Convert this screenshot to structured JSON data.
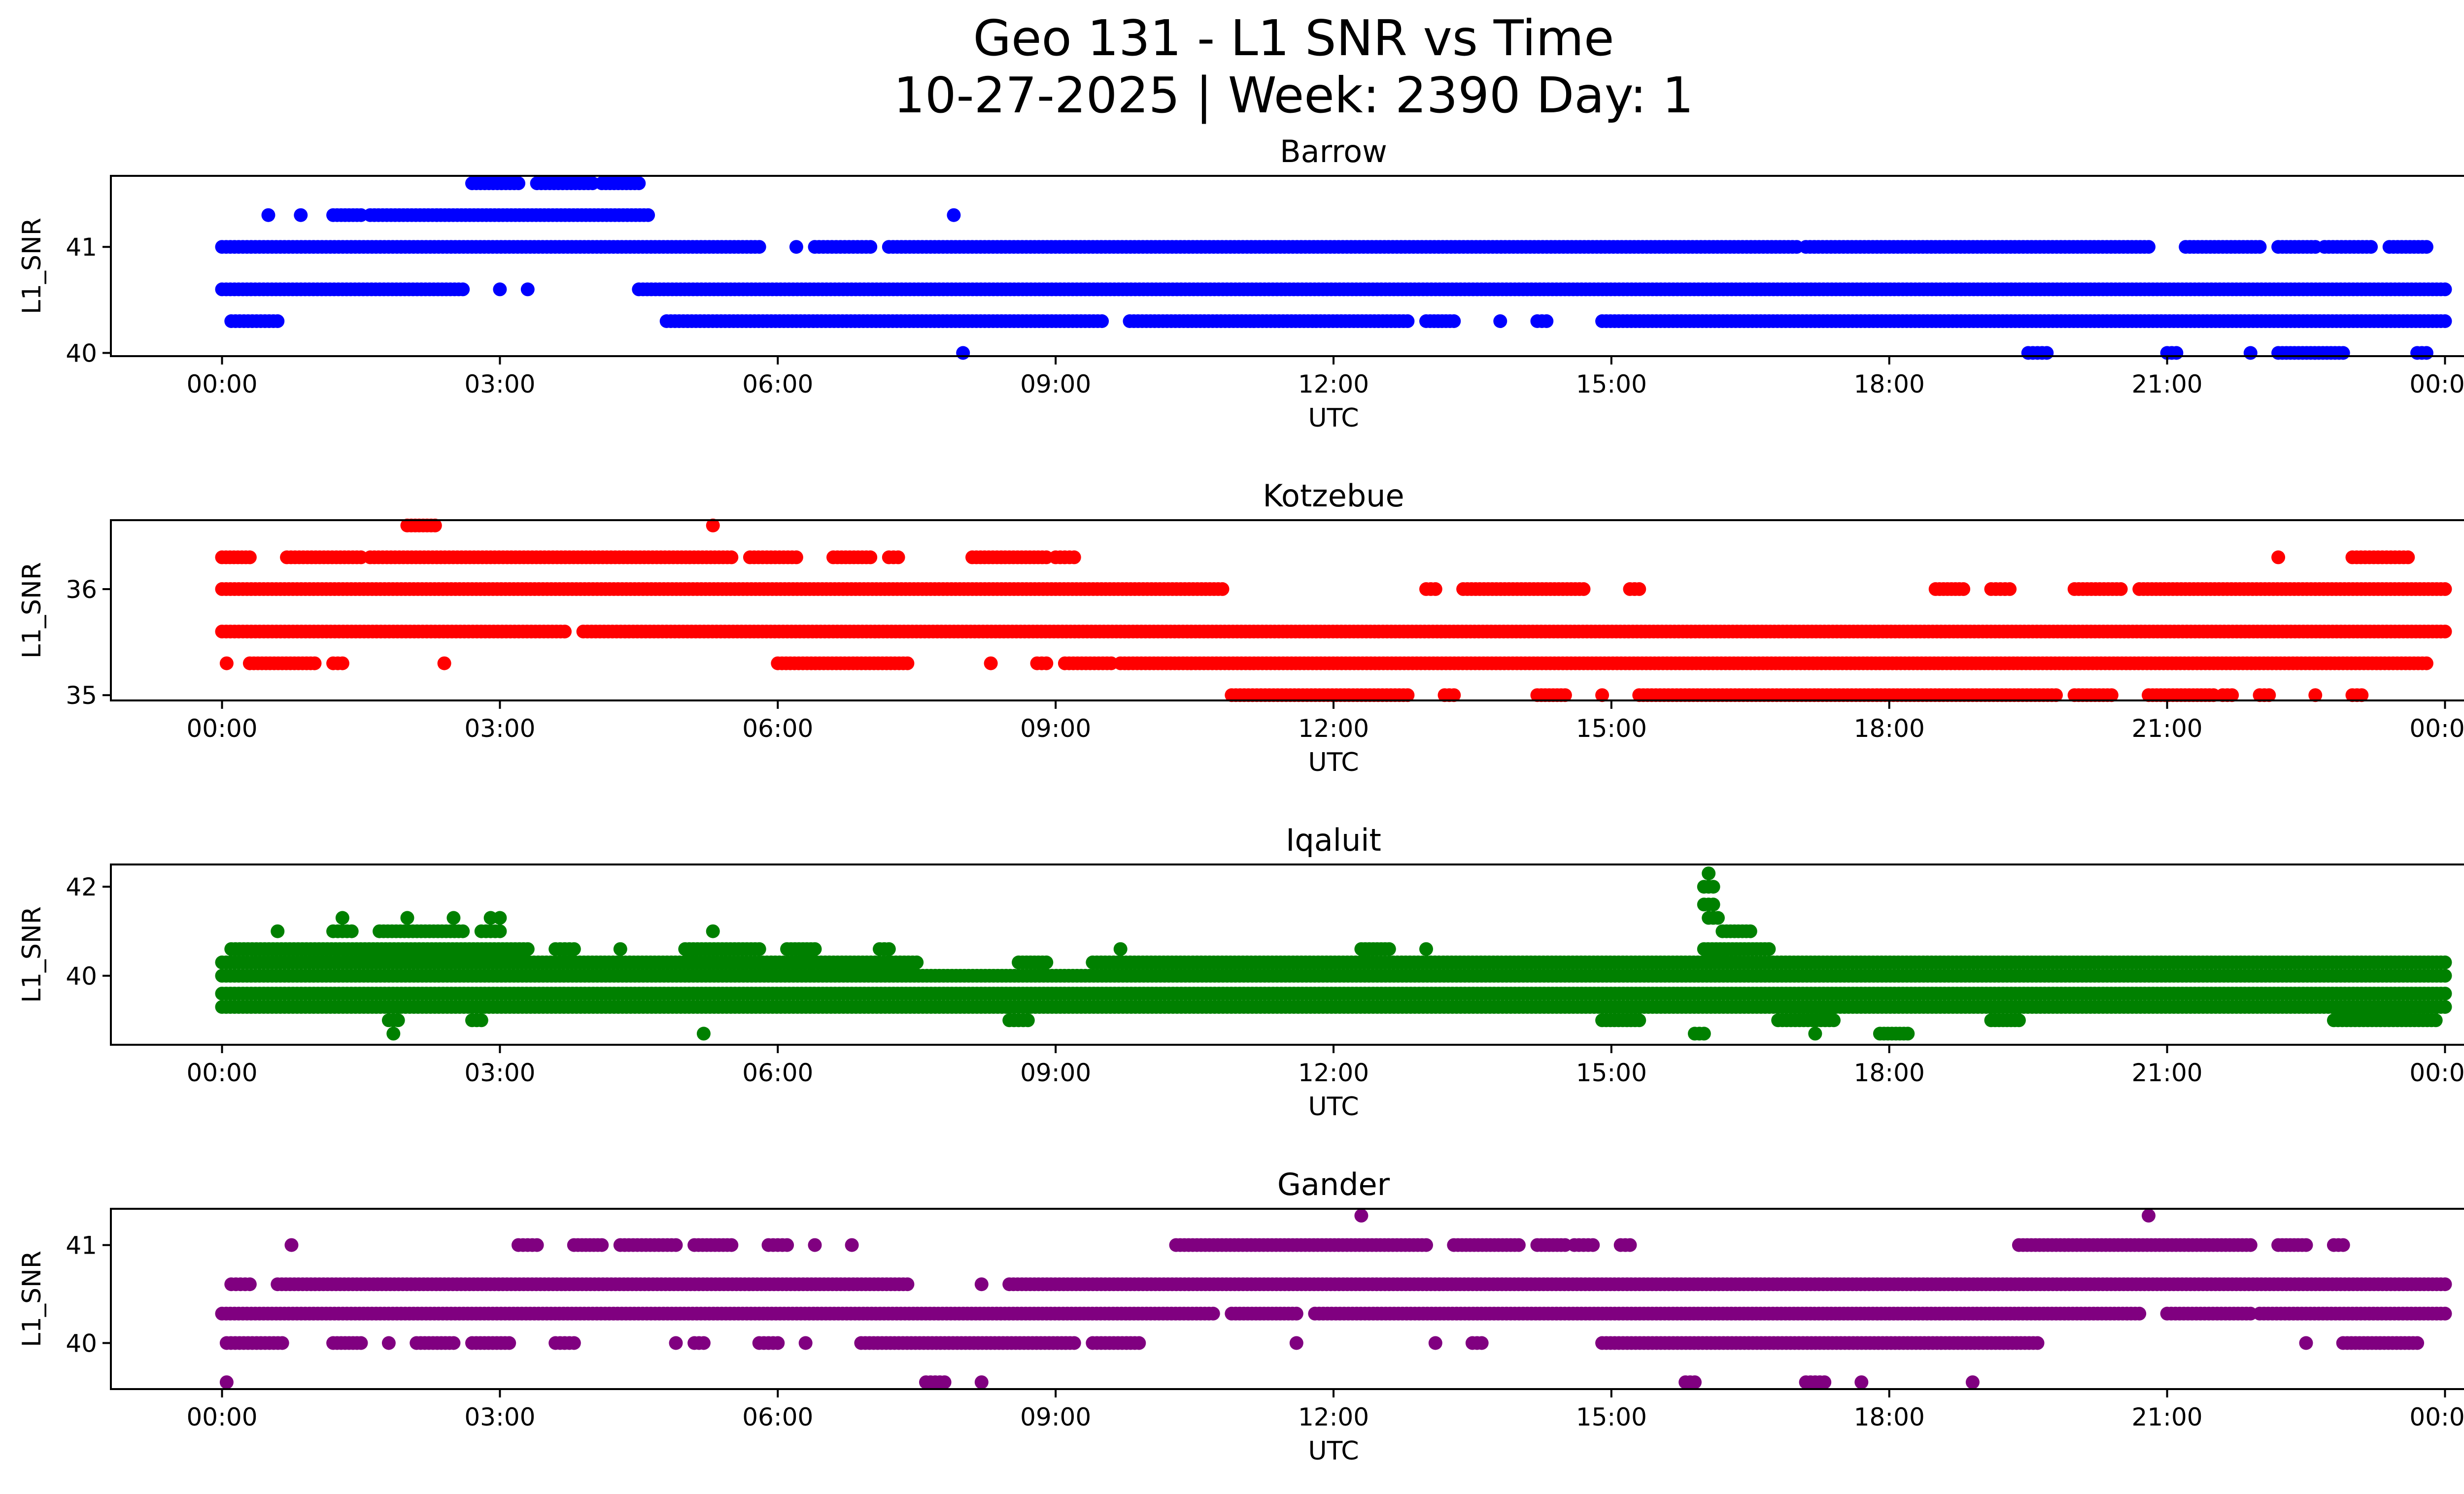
{
  "figure": {
    "title_line1": "Geo 131 - L1 SNR vs Time",
    "title_line2": "10-27-2025 | Week: 2390 Day: 1"
  },
  "chart_data": [
    {
      "type": "scatter",
      "title": "Barrow",
      "color": "#0000ff",
      "xlabel": "UTC",
      "ylabel": "L1_SNR",
      "xlim_hours": [
        -1.2,
        25.2
      ],
      "ylim": [
        39.97,
        41.67
      ],
      "xticks_hours": [
        0,
        3,
        6,
        9,
        12,
        15,
        18,
        21,
        24
      ],
      "xtick_labels": [
        "00:00",
        "03:00",
        "06:00",
        "09:00",
        "12:00",
        "15:00",
        "18:00",
        "21:00",
        "00:00"
      ],
      "yticks": [
        40,
        41
      ],
      "ytick_labels": [
        "40",
        "41"
      ],
      "bands": [
        {
          "y": 41.6,
          "segments": [
            [
              2.7,
              3.2
            ],
            [
              3.4,
              4.0
            ],
            [
              4.1,
              4.5
            ]
          ]
        },
        {
          "y": 41.3,
          "segments": [
            [
              0.5,
              0.5
            ],
            [
              0.85,
              0.85
            ],
            [
              1.2,
              1.5
            ],
            [
              1.6,
              4.6
            ],
            [
              7.9,
              7.9
            ]
          ]
        },
        {
          "y": 41.0,
          "segments": [
            [
              0,
              5.8
            ],
            [
              6.2,
              6.2
            ],
            [
              6.4,
              7.0
            ],
            [
              7.2,
              17.0
            ],
            [
              17.1,
              20.8
            ],
            [
              21.2,
              22.0
            ],
            [
              22.2,
              22.6
            ],
            [
              22.7,
              23.2
            ],
            [
              23.4,
              23.8
            ]
          ]
        },
        {
          "y": 40.6,
          "segments": [
            [
              0,
              2.6
            ],
            [
              3.0,
              3.0
            ],
            [
              3.3,
              3.3
            ],
            [
              4.5,
              24.0
            ]
          ]
        },
        {
          "y": 40.3,
          "segments": [
            [
              0.1,
              0.6
            ],
            [
              4.8,
              9.5
            ],
            [
              9.8,
              12.8
            ],
            [
              13.0,
              13.3
            ],
            [
              13.8,
              13.8
            ],
            [
              14.2,
              14.3
            ],
            [
              14.9,
              24.0
            ]
          ]
        },
        {
          "y": 40.0,
          "segments": [
            [
              8.0,
              8.0
            ],
            [
              19.5,
              19.7
            ],
            [
              21.0,
              21.1
            ],
            [
              21.9,
              21.9
            ],
            [
              22.2,
              22.9
            ],
            [
              23.7,
              23.8
            ]
          ]
        }
      ]
    },
    {
      "type": "scatter",
      "title": "Kotzebue",
      "color": "#ff0000",
      "xlabel": "UTC",
      "ylabel": "L1_SNR",
      "xlim_hours": [
        -1.2,
        25.2
      ],
      "ylim": [
        34.95,
        36.65
      ],
      "xticks_hours": [
        0,
        3,
        6,
        9,
        12,
        15,
        18,
        21,
        24
      ],
      "xtick_labels": [
        "00:00",
        "03:00",
        "06:00",
        "09:00",
        "12:00",
        "15:00",
        "18:00",
        "21:00",
        "00:00"
      ],
      "yticks": [
        35,
        36
      ],
      "ytick_labels": [
        "35",
        "36"
      ],
      "bands": [
        {
          "y": 36.6,
          "segments": [
            [
              2.0,
              2.3
            ],
            [
              5.3,
              5.3
            ]
          ]
        },
        {
          "y": 36.3,
          "segments": [
            [
              0,
              0.3
            ],
            [
              0.7,
              1.5
            ],
            [
              1.6,
              5.5
            ],
            [
              5.7,
              6.2
            ],
            [
              6.6,
              7.0
            ],
            [
              7.2,
              7.3
            ],
            [
              8.1,
              8.9
            ],
            [
              9.0,
              9.2
            ],
            [
              22.2,
              22.2
            ],
            [
              23.0,
              23.6
            ]
          ]
        },
        {
          "y": 36.0,
          "segments": [
            [
              0,
              10.8
            ],
            [
              13.0,
              13.1
            ],
            [
              13.4,
              14.7
            ],
            [
              15.2,
              15.3
            ],
            [
              18.5,
              18.8
            ],
            [
              19.1,
              19.3
            ],
            [
              20.0,
              20.5
            ],
            [
              20.7,
              24.0
            ]
          ]
        },
        {
          "y": 35.6,
          "segments": [
            [
              0,
              3.7
            ],
            [
              3.9,
              24.0
            ]
          ]
        },
        {
          "y": 35.3,
          "segments": [
            [
              0.05,
              0.05
            ],
            [
              0.3,
              1.0
            ],
            [
              1.2,
              1.3
            ],
            [
              2.4,
              2.4
            ],
            [
              6.0,
              7.4
            ],
            [
              8.3,
              8.3
            ],
            [
              8.8,
              8.9
            ],
            [
              9.1,
              9.6
            ],
            [
              9.7,
              23.8
            ]
          ]
        },
        {
          "y": 35.0,
          "segments": [
            [
              10.9,
              12.8
            ],
            [
              13.2,
              13.3
            ],
            [
              14.2,
              14.5
            ],
            [
              14.9,
              14.9
            ],
            [
              15.3,
              19.8
            ],
            [
              20.0,
              20.4
            ],
            [
              20.8,
              21.5
            ],
            [
              21.6,
              21.7
            ],
            [
              22.0,
              22.1
            ],
            [
              22.6,
              22.6
            ],
            [
              23.0,
              23.1
            ]
          ]
        }
      ]
    },
    {
      "type": "scatter",
      "title": "Iqaluit",
      "color": "#008000",
      "xlabel": "UTC",
      "ylabel": "L1_SNR",
      "xlim_hours": [
        -1.2,
        25.2
      ],
      "ylim": [
        38.45,
        42.5
      ],
      "xticks_hours": [
        0,
        3,
        6,
        9,
        12,
        15,
        18,
        21,
        24
      ],
      "xtick_labels": [
        "00:00",
        "03:00",
        "06:00",
        "09:00",
        "12:00",
        "15:00",
        "18:00",
        "21:00",
        "00:00"
      ],
      "yticks": [
        40,
        42
      ],
      "ytick_labels": [
        "40",
        "42"
      ],
      "bands": [
        {
          "y": 42.3,
          "segments": [
            [
              16.05,
              16.05
            ]
          ]
        },
        {
          "y": 42.0,
          "segments": [
            [
              16.0,
              16.1
            ]
          ]
        },
        {
          "y": 41.6,
          "segments": [
            [
              16.0,
              16.1
            ]
          ]
        },
        {
          "y": 41.3,
          "segments": [
            [
              1.3,
              1.3
            ],
            [
              2.0,
              2.0
            ],
            [
              2.5,
              2.5
            ],
            [
              2.9,
              2.9
            ],
            [
              3.0,
              3.0
            ],
            [
              16.05,
              16.15
            ]
          ]
        },
        {
          "y": 41.0,
          "segments": [
            [
              0.6,
              0.6
            ],
            [
              1.2,
              1.4
            ],
            [
              1.7,
              2.6
            ],
            [
              2.8,
              3.0
            ],
            [
              5.3,
              5.3
            ],
            [
              16.2,
              16.5
            ]
          ]
        },
        {
          "y": 40.6,
          "segments": [
            [
              0.1,
              3.3
            ],
            [
              3.6,
              3.8
            ],
            [
              4.3,
              4.3
            ],
            [
              5.0,
              5.8
            ],
            [
              6.1,
              6.4
            ],
            [
              7.1,
              7.2
            ],
            [
              9.7,
              9.7
            ],
            [
              12.3,
              12.6
            ],
            [
              13.0,
              13.0
            ],
            [
              16.0,
              16.7
            ]
          ]
        },
        {
          "y": 40.3,
          "segments": [
            [
              0,
              7.5
            ],
            [
              8.6,
              8.9
            ],
            [
              9.4,
              24.0
            ]
          ]
        },
        {
          "y": 40.0,
          "segments": [
            [
              0,
              24.0
            ]
          ]
        },
        {
          "y": 39.6,
          "segments": [
            [
              0,
              24.0
            ]
          ]
        },
        {
          "y": 39.3,
          "segments": [
            [
              0,
              24.0
            ]
          ]
        },
        {
          "y": 39.0,
          "segments": [
            [
              1.8,
              1.9
            ],
            [
              2.7,
              2.8
            ],
            [
              8.5,
              8.7
            ],
            [
              14.9,
              15.3
            ],
            [
              16.8,
              17.4
            ],
            [
              19.1,
              19.4
            ],
            [
              22.8,
              23.9
            ]
          ]
        },
        {
          "y": 38.7,
          "segments": [
            [
              1.85,
              1.85
            ],
            [
              5.2,
              5.2
            ],
            [
              15.9,
              16.0
            ],
            [
              17.2,
              17.2
            ],
            [
              17.9,
              18.2
            ]
          ]
        }
      ]
    },
    {
      "type": "scatter",
      "title": "Gander",
      "color": "#800080",
      "xlabel": "UTC",
      "ylabel": "L1_SNR",
      "xlim_hours": [
        -1.2,
        25.2
      ],
      "ylim": [
        39.53,
        41.37
      ],
      "xticks_hours": [
        0,
        3,
        6,
        9,
        12,
        15,
        18,
        21,
        24
      ],
      "xtick_labels": [
        "00:00",
        "03:00",
        "06:00",
        "09:00",
        "12:00",
        "15:00",
        "18:00",
        "21:00",
        "00:00"
      ],
      "yticks": [
        40,
        41
      ],
      "ytick_labels": [
        "40",
        "41"
      ],
      "bands": [
        {
          "y": 41.3,
          "segments": [
            [
              12.3,
              12.3
            ],
            [
              20.8,
              20.8
            ]
          ]
        },
        {
          "y": 41.0,
          "segments": [
            [
              0.75,
              0.75
            ],
            [
              3.2,
              3.4
            ],
            [
              3.8,
              4.1
            ],
            [
              4.3,
              4.9
            ],
            [
              5.1,
              5.5
            ],
            [
              5.9,
              6.1
            ],
            [
              6.4,
              6.4
            ],
            [
              6.8,
              6.8
            ],
            [
              10.3,
              13.0
            ],
            [
              13.3,
              14.0
            ],
            [
              14.2,
              14.5
            ],
            [
              14.6,
              14.8
            ],
            [
              15.1,
              15.2
            ],
            [
              19.4,
              21.9
            ],
            [
              22.2,
              22.5
            ],
            [
              22.8,
              22.9
            ]
          ]
        },
        {
          "y": 40.6,
          "segments": [
            [
              0.1,
              0.3
            ],
            [
              0.6,
              7.4
            ],
            [
              8.2,
              8.2
            ],
            [
              8.5,
              24.0
            ]
          ]
        },
        {
          "y": 40.3,
          "segments": [
            [
              0,
              10.7
            ],
            [
              10.9,
              11.6
            ],
            [
              11.8,
              20.7
            ],
            [
              21.0,
              21.9
            ],
            [
              22.0,
              24.0
            ]
          ]
        },
        {
          "y": 40.0,
          "segments": [
            [
              0.05,
              0.65
            ],
            [
              1.2,
              1.5
            ],
            [
              1.8,
              1.8
            ],
            [
              2.1,
              2.5
            ],
            [
              2.7,
              3.1
            ],
            [
              3.6,
              3.8
            ],
            [
              4.9,
              4.9
            ],
            [
              5.1,
              5.2
            ],
            [
              5.8,
              6.0
            ],
            [
              6.3,
              6.3
            ],
            [
              6.9,
              9.2
            ],
            [
              9.4,
              9.9
            ],
            [
              11.6,
              11.6
            ],
            [
              13.1,
              13.1
            ],
            [
              13.5,
              13.6
            ],
            [
              14.9,
              19.6
            ],
            [
              22.5,
              22.5
            ],
            [
              22.9,
              23.7
            ]
          ]
        },
        {
          "y": 39.6,
          "segments": [
            [
              0.05,
              0.05
            ],
            [
              7.6,
              7.8
            ],
            [
              8.2,
              8.2
            ],
            [
              15.8,
              15.9
            ],
            [
              17.1,
              17.3
            ],
            [
              17.7,
              17.7
            ],
            [
              18.9,
              18.9
            ]
          ]
        }
      ]
    }
  ]
}
